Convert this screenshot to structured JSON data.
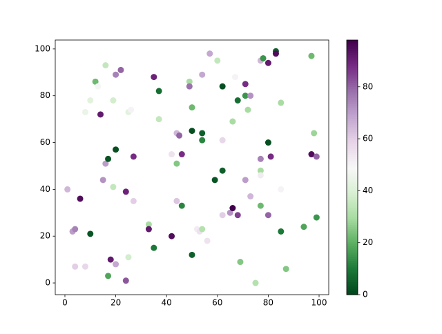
{
  "chart_data": {
    "type": "scatter",
    "x": [
      1,
      3,
      4,
      4,
      8,
      6,
      8,
      10,
      10,
      12,
      13,
      14,
      15,
      16,
      16,
      17,
      17,
      18,
      19,
      19,
      20,
      20,
      20,
      22,
      24,
      24,
      25,
      26,
      25,
      27,
      27,
      33,
      33,
      35,
      35,
      37,
      37,
      42,
      42,
      44,
      45,
      44,
      44,
      46,
      46,
      49,
      49,
      50,
      50,
      50,
      52,
      53,
      54,
      54,
      54,
      56,
      57,
      60,
      54,
      59,
      62,
      62,
      62,
      62,
      65,
      66,
      66,
      67,
      68,
      69,
      68,
      71,
      71,
      73,
      71,
      72,
      73,
      75,
      77,
      78,
      77,
      77,
      77,
      77,
      80,
      80,
      80,
      81,
      83,
      83,
      85,
      85,
      85,
      87,
      94,
      97,
      97,
      98,
      99,
      99
    ],
    "y": [
      40,
      22,
      23,
      7,
      7,
      36,
      73,
      78,
      21,
      86,
      84,
      72,
      44,
      93,
      51,
      53,
      3,
      10,
      78,
      41,
      8,
      57,
      89,
      91,
      39,
      1,
      73,
      74,
      11,
      54,
      35,
      25,
      23,
      88,
      15,
      82,
      70,
      55,
      20,
      64,
      63,
      51,
      35,
      55,
      33,
      86,
      84,
      75,
      65,
      12,
      23,
      22,
      23,
      64,
      61,
      18,
      98,
      95,
      89,
      44,
      84,
      61,
      48,
      29,
      30,
      32,
      69,
      88,
      29,
      9,
      78,
      85,
      80,
      80,
      44,
      74,
      37,
      0,
      95,
      96,
      53,
      48,
      46,
      33,
      94,
      60,
      29,
      54,
      99,
      98,
      77,
      40,
      22,
      6,
      24,
      97,
      55,
      64,
      54,
      28
    ],
    "c": [
      65,
      70,
      75,
      60,
      58,
      95,
      45,
      42,
      3,
      22,
      48,
      92,
      72,
      35,
      70,
      3,
      18,
      92,
      38,
      35,
      68,
      2,
      75,
      80,
      90,
      82,
      42,
      50,
      38,
      88,
      60,
      30,
      92,
      90,
      10,
      8,
      35,
      55,
      95,
      65,
      80,
      25,
      62,
      88,
      12,
      30,
      78,
      22,
      2,
      5,
      52,
      55,
      32,
      5,
      12,
      55,
      68,
      35,
      68,
      3,
      2,
      58,
      5,
      60,
      72,
      98,
      30,
      50,
      85,
      25,
      8,
      88,
      15,
      72,
      70,
      30,
      65,
      32,
      65,
      15,
      75,
      30,
      52,
      22,
      92,
      2,
      80,
      88,
      5,
      95,
      30,
      50,
      10,
      25,
      18,
      22,
      95,
      28,
      80,
      15
    ],
    "colormap": "PRGn_r",
    "clim": [
      0,
      98
    ],
    "cticks": [
      0,
      20,
      40,
      60,
      80
    ],
    "xlim": [
      -3.8,
      103.8
    ],
    "xticks": [
      0,
      20,
      40,
      60,
      80,
      100
    ],
    "ylim": [
      -5,
      103.8
    ],
    "yticks": [
      0,
      20,
      40,
      60,
      80,
      100
    ]
  }
}
